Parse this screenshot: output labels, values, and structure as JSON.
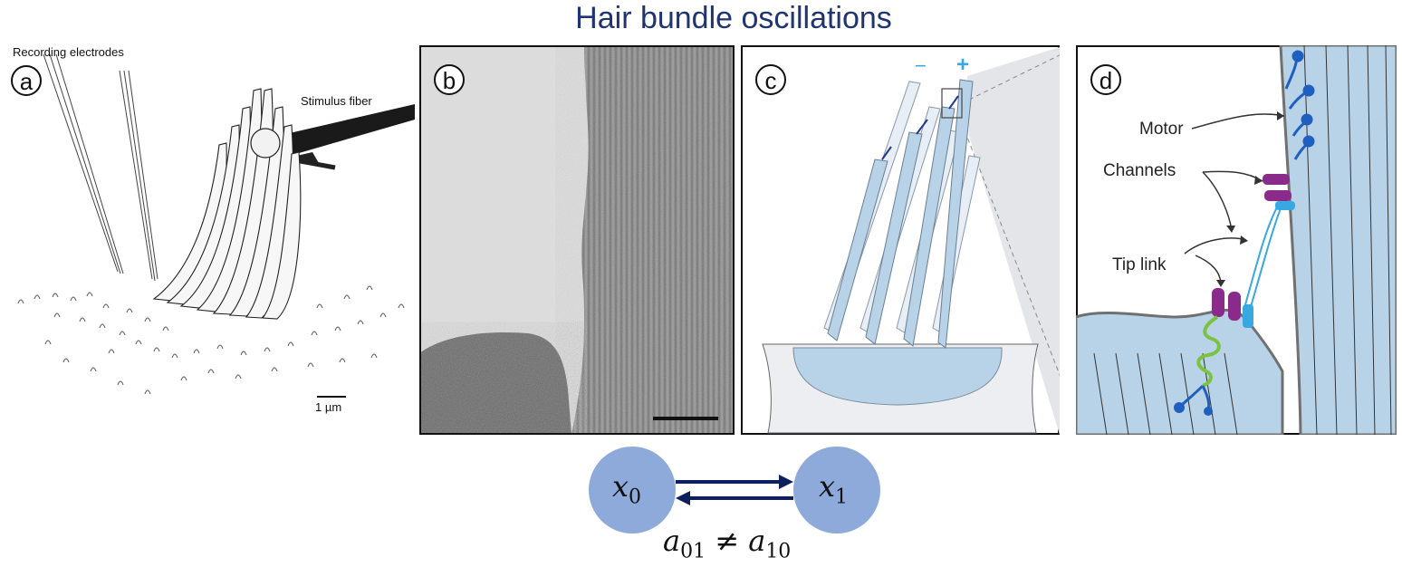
{
  "title": "Hair bundle oscillations",
  "panels": [
    {
      "letter": "a",
      "labels": {
        "electrodes": "Recording electrodes",
        "fiber": "Stimulus fiber",
        "scale": "1 µm"
      }
    },
    {
      "letter": "b"
    },
    {
      "letter": "c",
      "labels": {
        "minus": "−",
        "plus": "+"
      }
    },
    {
      "letter": "d",
      "labels": {
        "motor": "Motor",
        "channels": "Channels",
        "tip_link": "Tip link"
      }
    }
  ],
  "states": {
    "x0": {
      "var": "x",
      "sub": "0"
    },
    "x1": {
      "var": "x",
      "sub": "1"
    },
    "relation": {
      "lhs_var": "a",
      "lhs_sub": "01",
      "op": "≠",
      "rhs_var": "a",
      "rhs_sub": "10"
    }
  },
  "colors": {
    "title": "#1f3470",
    "state_fill": "#8eaadb",
    "arrow": "#0d1f5c",
    "membrane": "#b8d3e8",
    "motor": "#1f5fbf",
    "channel": "#8a2a8a",
    "channel_light": "#39a8e0",
    "tip_link": "#39a8e0",
    "spring": "#7cc242"
  }
}
